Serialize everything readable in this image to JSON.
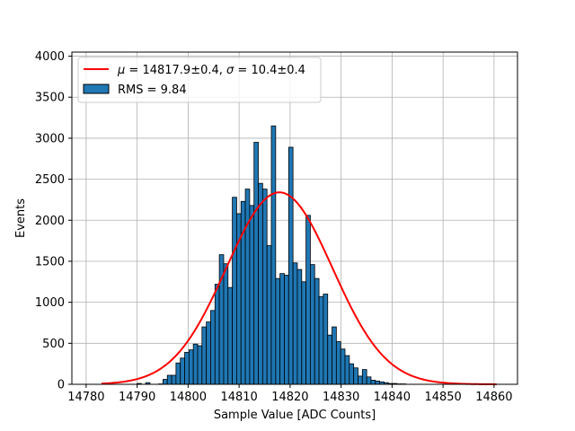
{
  "chart_data": {
    "type": "bar",
    "title": "",
    "xlabel": "Sample Value [ADC Counts]",
    "ylabel": "Events",
    "xlim": [
      14777.2,
      14864.6
    ],
    "ylim": [
      0,
      4050
    ],
    "xticks": [
      14780,
      14790,
      14800,
      14810,
      14820,
      14830,
      14840,
      14850,
      14860
    ],
    "yticks": [
      0,
      500,
      1000,
      1500,
      2000,
      2500,
      3000,
      3500,
      4000
    ],
    "grid": true,
    "legend_position": "upper-left",
    "histogram": {
      "name": "RMS = 9.84",
      "bin_width": 0.85,
      "bin_edges_start": 14783.17,
      "color": "#1f77b4",
      "values": [
        0,
        0,
        0,
        0,
        0,
        0,
        0,
        0,
        10,
        0,
        20,
        0,
        0,
        5,
        60,
        110,
        110,
        260,
        320,
        390,
        420,
        490,
        470,
        700,
        760,
        900,
        1220,
        1580,
        1470,
        1180,
        2280,
        2080,
        2230,
        2380,
        2180,
        2950,
        2450,
        2380,
        1690,
        3150,
        1290,
        1350,
        1330,
        2890,
        1480,
        1400,
        1250,
        2060,
        1460,
        1290,
        1070,
        1100,
        600,
        700,
        520,
        430,
        350,
        250,
        200,
        100,
        180,
        90,
        50,
        40,
        30,
        20,
        10,
        10,
        5,
        5,
        0,
        0,
        0,
        0,
        0,
        0,
        0,
        0,
        0,
        0,
        0,
        0,
        0,
        0,
        0,
        0,
        0,
        0,
        0,
        0,
        0
      ]
    },
    "fit": {
      "name_parts": [
        "μ",
        " = 14817.9±0.4, ",
        "σ",
        " = 10.4±0.4"
      ],
      "color": "#ff0000",
      "mean": 14817.9,
      "sigma": 10.4,
      "amplitude": 2340,
      "x_range": [
        14783,
        14860.5
      ]
    }
  },
  "colors": {
    "frame": "#000000",
    "grid": "#b0b0b0"
  }
}
